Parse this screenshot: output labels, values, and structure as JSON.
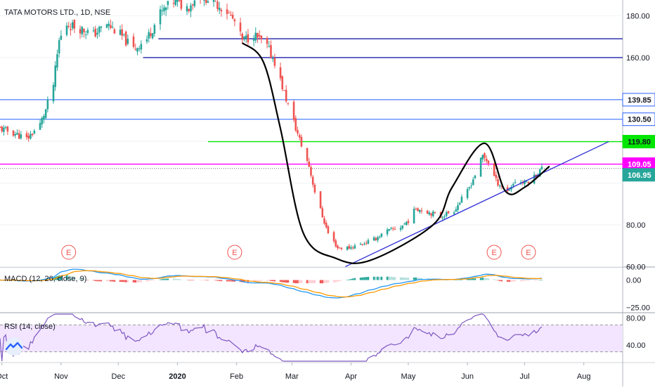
{
  "chart_data": {
    "type": "candlestick",
    "title": "TATA MOTORS LTD., 1D, NSE",
    "colors": {
      "up": "#26a69a",
      "down": "#ef5350",
      "resistance": "#1e22aa",
      "level": "#2962ff",
      "green_level": "#00e600",
      "magenta_level": "#ff00ff",
      "macd": "#2196f3",
      "signal": "#ff9800",
      "rsi": "#7e57c2",
      "rsi_band": "#f3e5ff"
    },
    "price_axis": {
      "ticks": [
        "180.00",
        "160.00",
        "80.00",
        "60.00"
      ],
      "range": [
        60,
        186
      ]
    },
    "x_axis": {
      "ticks": [
        "Oct",
        "Nov",
        "Dec",
        "2020",
        "Feb",
        "Mar",
        "Apr",
        "May",
        "Jun",
        "Jul",
        "Aug"
      ]
    },
    "price_labels": [
      {
        "value": 139.85,
        "text": "139.85",
        "style": "blue"
      },
      {
        "value": 130.5,
        "text": "130.50",
        "style": "blue"
      },
      {
        "value": 119.8,
        "text": "119.80",
        "style": "green"
      },
      {
        "value": 109.05,
        "text": "109.05",
        "style": "magenta"
      },
      {
        "value": 106.95,
        "text": "106.95",
        "style": "teal"
      }
    ],
    "earnings_markers": [
      {
        "label": "E",
        "date": "2019-11-05"
      },
      {
        "label": "E",
        "date": "2020-01-31"
      },
      {
        "label": "E",
        "date": "2020-06-15"
      },
      {
        "label": "E",
        "date": "2020-07-03"
      }
    ],
    "horizontal_levels": [
      {
        "price": 169,
        "from": "2019-12-22",
        "style": "resistance"
      },
      {
        "price": 160,
        "from": "2019-12-14",
        "style": "resistance"
      },
      {
        "price": 139.85,
        "from": "2019-09-30",
        "style": "level"
      },
      {
        "price": 130.5,
        "from": "2019-09-30",
        "style": "level"
      },
      {
        "price": 119.8,
        "from": "2020-01-17",
        "style": "green"
      },
      {
        "price": 109.05,
        "from": "2019-09-30",
        "style": "magenta"
      }
    ],
    "trendline": {
      "from": [
        "2020-03-29",
        60
      ],
      "to": [
        "2020-08-14",
        119.8
      ]
    },
    "cup_handle_curve": [
      [
        "2020-02-04",
        167
      ],
      [
        "2020-02-15",
        158
      ],
      [
        "2020-02-24",
        126
      ],
      [
        "2020-03-07",
        76
      ],
      [
        "2020-03-24",
        64
      ],
      [
        "2020-04-11",
        63
      ],
      [
        "2020-05-14",
        80
      ],
      [
        "2020-05-24",
        98
      ],
      [
        "2020-06-10",
        119
      ],
      [
        "2020-06-21",
        96
      ],
      [
        "2020-07-01",
        98
      ],
      [
        "2020-07-14",
        108
      ]
    ],
    "macd": {
      "label": "MACD (12, 26, close, 9)",
      "ticks": [
        "0.00",
        "−25.00"
      ],
      "range": [
        -28,
        10
      ]
    },
    "rsi": {
      "label": "RSI (14, close)",
      "ticks": [
        "80.00",
        "40.00"
      ],
      "range": [
        16,
        86
      ],
      "band": [
        30,
        70
      ]
    }
  }
}
